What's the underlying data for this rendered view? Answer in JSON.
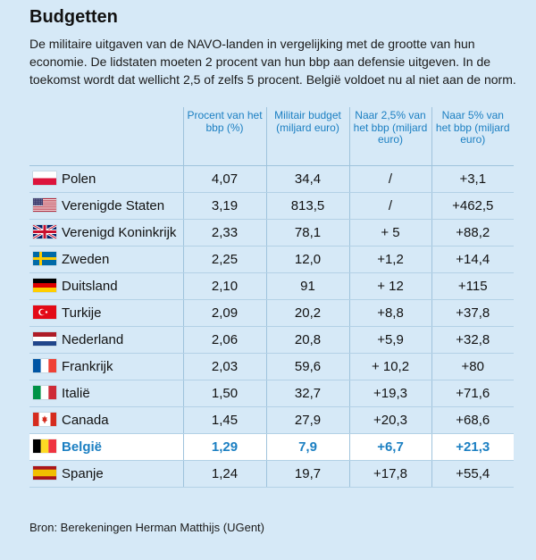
{
  "title": "Budgetten",
  "intro": "De militaire uitgaven van de NAVO-landen in vergelijking met de grootte van hun economie. De lidstaten moeten 2 procent van hun bbp aan defensie uitgeven. In de toekomst wordt dat wellicht 2,5 of zelfs 5 procent. België voldoet nu al niet aan de norm.",
  "source": "Bron: Berekeningen Herman Matthijs (UGent)",
  "chart_data": {
    "type": "table",
    "title": "Budgetten",
    "columns": [
      "",
      "Procent van het bbp (%)",
      "Militair budget (miljard euro)",
      "Naar 2,5% van het bbp (miljard euro)",
      "Naar 5% van het bbp (miljard euro)"
    ],
    "highlight_row": "België",
    "rows": [
      {
        "country": "Polen",
        "flag": "flag-poland",
        "pct": "4,07",
        "budget": "34,4",
        "to25": "/",
        "to5": "+3,1"
      },
      {
        "country": "Verenigde Staten",
        "flag": "flag-usa",
        "pct": "3,19",
        "budget": "813,5",
        "to25": "/",
        "to5": "+462,5"
      },
      {
        "country": "Verenigd Koninkrijk",
        "flag": "flag-uk",
        "pct": "2,33",
        "budget": "78,1",
        "to25": "+ 5",
        "to5": "+88,2"
      },
      {
        "country": "Zweden",
        "flag": "flag-sweden",
        "pct": "2,25",
        "budget": "12,0",
        "to25": "+1,2",
        "to5": "+14,4"
      },
      {
        "country": "Duitsland",
        "flag": "flag-germany",
        "pct": "2,10",
        "budget": "91",
        "to25": "+ 12",
        "to5": "+115"
      },
      {
        "country": "Turkije",
        "flag": "flag-turkey",
        "pct": "2,09",
        "budget": "20,2",
        "to25": "+8,8",
        "to5": "+37,8"
      },
      {
        "country": "Nederland",
        "flag": "flag-netherlands",
        "pct": "2,06",
        "budget": "20,8",
        "to25": "+5,9",
        "to5": "+32,8"
      },
      {
        "country": "Frankrijk",
        "flag": "flag-france",
        "pct": "2,03",
        "budget": "59,6",
        "to25": "+ 10,2",
        "to5": "+80"
      },
      {
        "country": "Italië",
        "flag": "flag-italy",
        "pct": "1,50",
        "budget": "32,7",
        "to25": "+19,3",
        "to5": "+71,6"
      },
      {
        "country": "Canada",
        "flag": "flag-canada",
        "pct": "1,45",
        "budget": "27,9",
        "to25": "+20,3",
        "to5": "+68,6"
      },
      {
        "country": "België",
        "flag": "flag-belgium",
        "pct": "1,29",
        "budget": "7,9",
        "to25": "+6,7",
        "to5": "+21,3"
      },
      {
        "country": "Spanje",
        "flag": "flag-spain",
        "pct": "1,24",
        "budget": "19,7",
        "to25": "+17,8",
        "to5": "+55,4"
      }
    ]
  }
}
